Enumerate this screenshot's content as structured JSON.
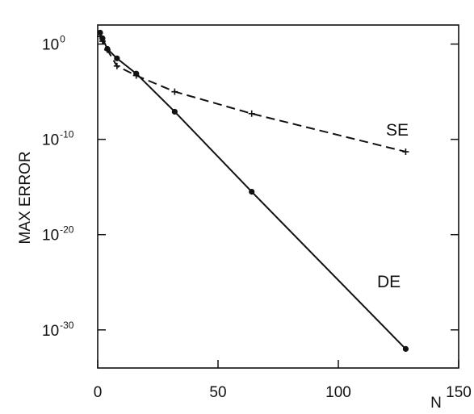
{
  "chart_data": {
    "type": "line",
    "title": "",
    "xlabel": "N",
    "ylabel": "MAX ERROR",
    "xlim": [
      0,
      150
    ],
    "ylim_exponent": [
      -34,
      2
    ],
    "yscale": "log",
    "grid": false,
    "x_ticks": [
      0,
      50,
      100,
      150
    ],
    "x_tick_labels": [
      "0",
      "50",
      "100",
      "150"
    ],
    "y_ticks_exponent": [
      0,
      -10,
      -20,
      -30
    ],
    "y_tick_labels": [
      {
        "base": "10",
        "exp": "0"
      },
      {
        "base": "10",
        "exp": "-10"
      },
      {
        "base": "10",
        "exp": "-20"
      },
      {
        "base": "10",
        "exp": "-30"
      }
    ],
    "series": [
      {
        "name": "SE",
        "style": "dashed",
        "marker": "plus",
        "x": [
          1,
          2,
          4,
          8,
          16,
          32,
          64,
          128
        ],
        "log10_y": [
          0.8,
          0.3,
          -0.6,
          -2.3,
          -3.3,
          -5.0,
          -7.3,
          -11.3
        ]
      },
      {
        "name": "DE",
        "style": "solid",
        "marker": "dot",
        "x": [
          1,
          2,
          4,
          8,
          16,
          32,
          64,
          128
        ],
        "log10_y": [
          1.2,
          0.6,
          -0.5,
          -1.5,
          -3.1,
          -7.1,
          -15.5,
          -32.0
        ]
      }
    ]
  }
}
